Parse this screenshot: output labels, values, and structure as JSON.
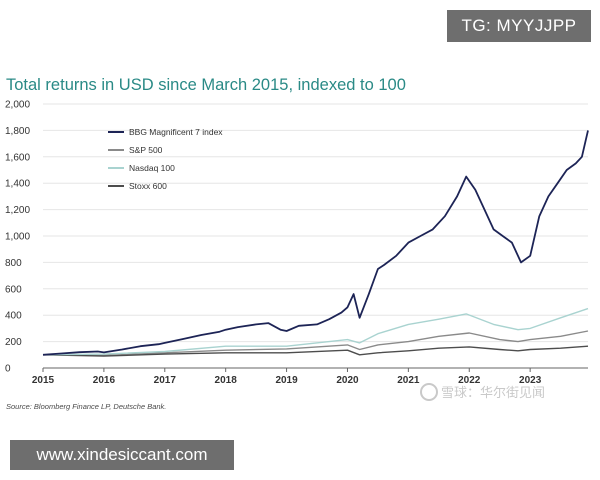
{
  "badges": {
    "telegram": "TG: MYYJJPP",
    "website": "www.xindesiccant.com"
  },
  "watermark": {
    "text": "雪球：华尔街见闻"
  },
  "source": "Source: Bloomberg Finance LP, Deutsche Bank.",
  "chart_data": {
    "type": "line",
    "title": "Total returns in USD since March 2015, indexed to 100",
    "xlabel": "",
    "ylabel": "",
    "xlim": [
      2015,
      2023.95
    ],
    "ylim": [
      0,
      2000
    ],
    "y_ticks": [
      0,
      200,
      400,
      600,
      800,
      "1,000",
      "1,200",
      "1,400",
      "1,600",
      "1,800",
      "2,000"
    ],
    "y_tick_values": [
      0,
      200,
      400,
      600,
      800,
      1000,
      1200,
      1400,
      1600,
      1800,
      2000
    ],
    "x_ticks": [
      "2015",
      "2016",
      "2017",
      "2018",
      "2019",
      "2020",
      "2021",
      "2022",
      "2023"
    ],
    "x_tick_values": [
      2015,
      2016,
      2017,
      2018,
      2019,
      2020,
      2021,
      2022,
      2023
    ],
    "grid": true,
    "legend_position": "top-left",
    "series": [
      {
        "name": "BBG Magnificent 7 index",
        "color": "#1d2456",
        "x": [
          2015.0,
          2015.3,
          2015.6,
          2015.9,
          2016.0,
          2016.3,
          2016.6,
          2016.9,
          2017.0,
          2017.3,
          2017.6,
          2017.9,
          2018.0,
          2018.2,
          2018.5,
          2018.7,
          2018.9,
          2019.0,
          2019.2,
          2019.5,
          2019.7,
          2019.9,
          2020.0,
          2020.1,
          2020.2,
          2020.35,
          2020.5,
          2020.6,
          2020.8,
          2021.0,
          2021.2,
          2021.4,
          2021.6,
          2021.8,
          2021.95,
          2022.1,
          2022.25,
          2022.4,
          2022.55,
          2022.7,
          2022.85,
          2023.0,
          2023.15,
          2023.3,
          2023.45,
          2023.6,
          2023.75,
          2023.85,
          2023.95
        ],
        "values": [
          100,
          110,
          120,
          125,
          118,
          140,
          165,
          180,
          190,
          220,
          250,
          275,
          290,
          310,
          330,
          340,
          290,
          280,
          320,
          330,
          370,
          420,
          460,
          560,
          380,
          560,
          750,
          780,
          850,
          950,
          1000,
          1050,
          1150,
          1300,
          1450,
          1350,
          1200,
          1050,
          1000,
          950,
          800,
          850,
          1150,
          1300,
          1400,
          1500,
          1550,
          1600,
          1800
        ]
      },
      {
        "name": "S&P 500",
        "color": "#8a8a8a",
        "x": [
          2015.0,
          2016.0,
          2017.0,
          2018.0,
          2019.0,
          2020.0,
          2020.2,
          2020.5,
          2021.0,
          2021.5,
          2022.0,
          2022.5,
          2022.8,
          2023.0,
          2023.5,
          2023.95
        ],
        "values": [
          100,
          95,
          115,
          135,
          145,
          175,
          140,
          175,
          200,
          240,
          265,
          215,
          200,
          215,
          240,
          280
        ]
      },
      {
        "name": "Nasdaq 100",
        "color": "#a9d3d0",
        "x": [
          2015.0,
          2016.0,
          2017.0,
          2018.0,
          2019.0,
          2020.0,
          2020.2,
          2020.5,
          2021.0,
          2021.5,
          2021.95,
          2022.4,
          2022.8,
          2023.0,
          2023.5,
          2023.95
        ],
        "values": [
          100,
          105,
          125,
          165,
          165,
          215,
          190,
          260,
          330,
          370,
          410,
          330,
          290,
          300,
          380,
          450
        ]
      },
      {
        "name": "Stoxx 600",
        "color": "#4d4d4d",
        "x": [
          2015.0,
          2016.0,
          2017.0,
          2018.0,
          2019.0,
          2020.0,
          2020.2,
          2020.5,
          2021.0,
          2021.5,
          2022.0,
          2022.5,
          2022.8,
          2023.0,
          2023.5,
          2023.95
        ],
        "values": [
          100,
          90,
          105,
          115,
          115,
          135,
          100,
          115,
          130,
          150,
          160,
          140,
          130,
          140,
          150,
          165
        ]
      }
    ]
  }
}
